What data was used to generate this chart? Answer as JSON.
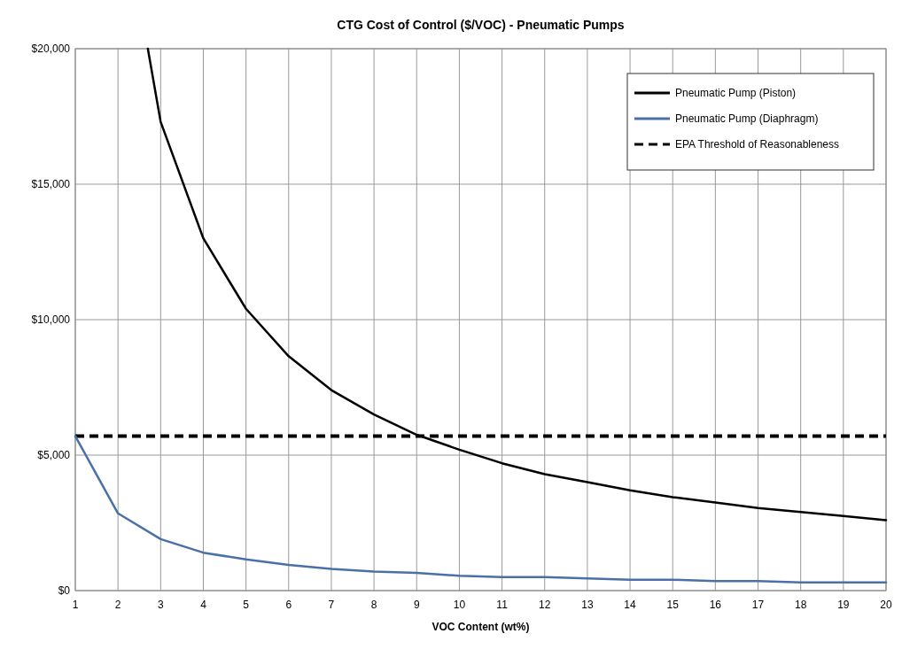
{
  "chart_data": {
    "type": "line",
    "title": "CTG Cost of Control ($/VOC) - Pneumatic Pumps",
    "xlabel": "VOC Content (wt%)",
    "x": [
      1,
      2,
      3,
      4,
      5,
      6,
      7,
      8,
      9,
      10,
      11,
      12,
      13,
      14,
      15,
      16,
      17,
      18,
      19,
      20
    ],
    "series": [
      {
        "name": "Pneumatic Pump (Piston)",
        "color": "#000000",
        "x": [
          2.7,
          3,
          4,
          5,
          6,
          7,
          8,
          9,
          10,
          11,
          12,
          13,
          14,
          15,
          16,
          17,
          18,
          19,
          20
        ],
        "values": [
          20000,
          17300,
          13000,
          10400,
          8650,
          7400,
          6500,
          5750,
          5200,
          4700,
          4300,
          4000,
          3700,
          3450,
          3250,
          3050,
          2900,
          2750,
          2600
        ]
      },
      {
        "name": "Pneumatic Pump (Diaphragm)",
        "color": "#4a70a8",
        "values": [
          5700,
          2850,
          1900,
          1400,
          1150,
          950,
          800,
          700,
          650,
          550,
          500,
          500,
          450,
          400,
          400,
          350,
          350,
          300,
          300,
          300
        ]
      }
    ],
    "ref_lines": [
      {
        "axis": "y",
        "value": 5700,
        "label": "EPA Threshold of Reasonableness",
        "color": "#000000",
        "line_style": "dashed"
      }
    ],
    "xlim": [
      1,
      20
    ],
    "xticks": [
      1,
      2,
      3,
      4,
      5,
      6,
      7,
      8,
      9,
      10,
      11,
      12,
      13,
      14,
      15,
      16,
      17,
      18,
      19,
      20
    ],
    "ylim": [
      0,
      20000
    ],
    "yticks": [
      {
        "value": 0,
        "label": "$0"
      },
      {
        "value": 5000,
        "label": "$5,000"
      },
      {
        "value": 10000,
        "label": "$10,000"
      },
      {
        "value": 15000,
        "label": "$15,000"
      },
      {
        "value": 20000,
        "label": "$20,000"
      }
    ],
    "grid": true,
    "legend": "top right",
    "marker": "none",
    "line_style": "solid"
  }
}
